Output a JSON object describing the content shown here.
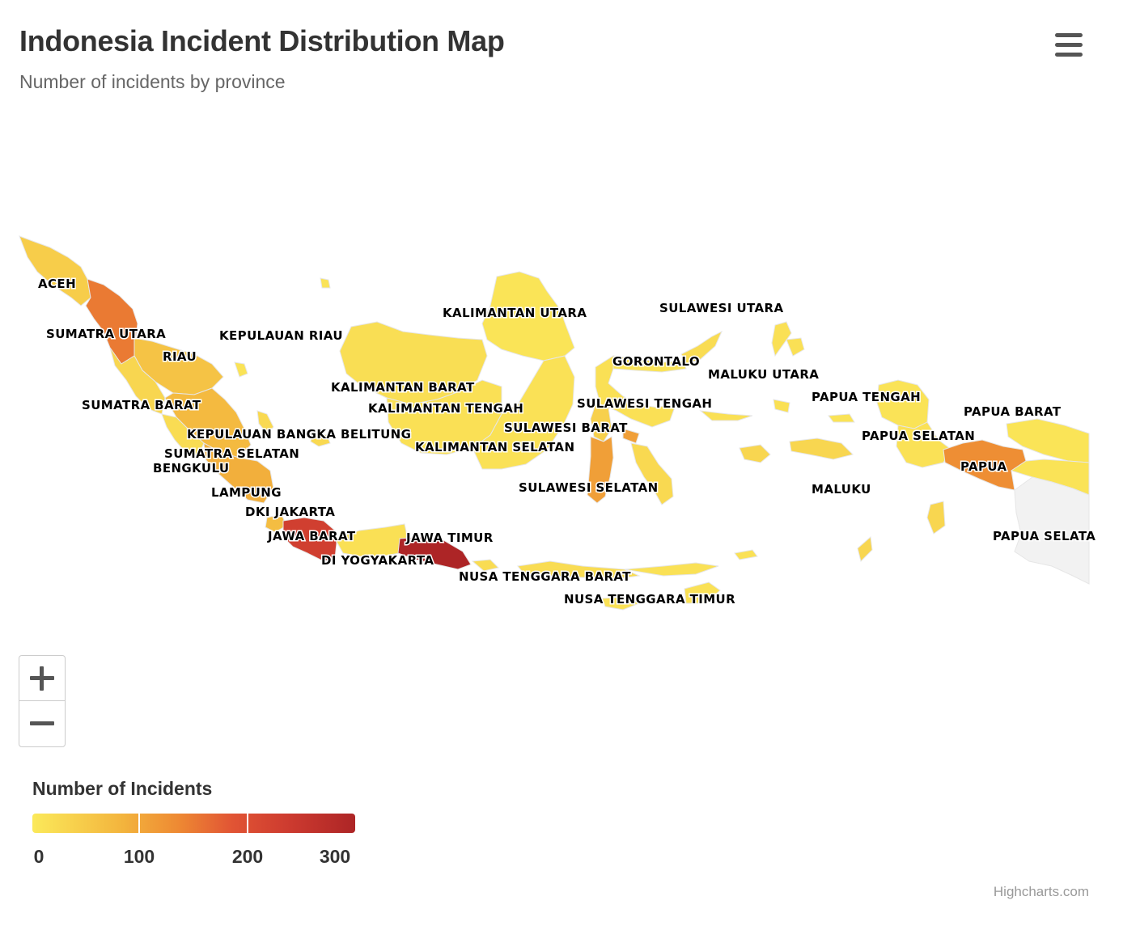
{
  "header": {
    "title": "Indonesia Incident Distribution Map",
    "subtitle": "Number of incidents by province"
  },
  "legend": {
    "title": "Number of Incidents",
    "min": 0,
    "max": 300,
    "ticks": [
      "0",
      "100",
      "200",
      "300"
    ]
  },
  "colors": {
    "low": "#fbe95a",
    "mid_low": "#f3b43d",
    "mid": "#ee8a33",
    "mid_high": "#e15434",
    "high": "#ad2526",
    "no_data": "#f2f2f2"
  },
  "credits": "Highcharts.com",
  "chart_data": {
    "type": "choropleth",
    "value_name": "Number of Incidents",
    "color_range": [
      0,
      300
    ],
    "provinces": [
      {
        "name": "ACEH",
        "value": 45
      },
      {
        "name": "SUMATRA UTARA",
        "value": 150
      },
      {
        "name": "RIAU",
        "value": 60
      },
      {
        "name": "KEPULAUAN RIAU",
        "value": 10
      },
      {
        "name": "SUMATRA BARAT",
        "value": 30
      },
      {
        "name": "KEPULAUAN BANGKA BELITUNG",
        "value": 25
      },
      {
        "name": "SUMATRA SELATAN",
        "value": 75
      },
      {
        "name": "BENGKULU",
        "value": 20
      },
      {
        "name": "LAMPUNG",
        "value": 90
      },
      {
        "name": "DKI JAKARTA",
        "value": 70
      },
      {
        "name": "JAWA BARAT",
        "value": 230
      },
      {
        "name": "DI YOGYAKARTA",
        "value": 15
      },
      {
        "name": "JAWA TIMUR",
        "value": 300
      },
      {
        "name": "NUSA TENGGARA BARAT",
        "value": 20
      },
      {
        "name": "NUSA TENGGARA TIMUR",
        "value": 12
      },
      {
        "name": "KALIMANTAN UTARA",
        "value": 8
      },
      {
        "name": "KALIMANTAN BARAT",
        "value": 18
      },
      {
        "name": "KALIMANTAN TENGAH",
        "value": 15
      },
      {
        "name": "KALIMANTAN SELATAN",
        "value": 12
      },
      {
        "name": "SULAWESI UTARA",
        "value": 20
      },
      {
        "name": "GORONTALO",
        "value": 10
      },
      {
        "name": "SULAWESI TENGAH",
        "value": 15
      },
      {
        "name": "SULAWESI BARAT",
        "value": 40
      },
      {
        "name": "SULAWESI SELATAN",
        "value": 110
      },
      {
        "name": "MALUKU UTARA",
        "value": 15
      },
      {
        "name": "MALUKU",
        "value": 30
      },
      {
        "name": "PAPUA TENGAH",
        "value": 10
      },
      {
        "name": "PAPUA BARAT",
        "value": 8
      },
      {
        "name": "PAPUA SELATAN",
        "value": 12
      },
      {
        "name": "PAPUA",
        "value": 130
      },
      {
        "name": "PAPUA SELATA",
        "value": null
      }
    ]
  }
}
